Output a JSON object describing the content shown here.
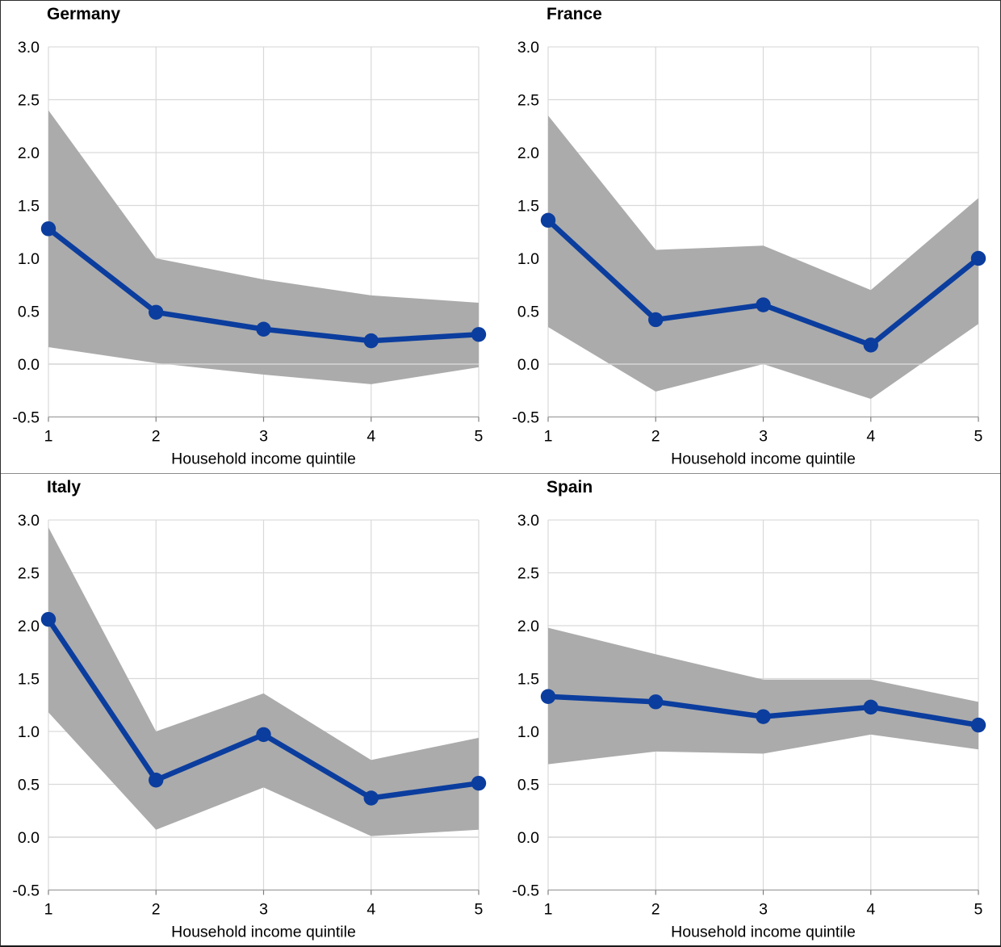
{
  "figure": {
    "panel_count": 4,
    "layout": "2x2"
  },
  "styles": {
    "line_color": "#0b3d9e",
    "marker_color": "#0b3d9e",
    "band_color": "#ababab",
    "gridline_color": "#d9d9d9",
    "zero_line_color": "#d6d6d6",
    "axis_line_color": "#a6a6a6",
    "tick_mark_color": "#808080",
    "text_color": "#000000"
  },
  "chart_data": [
    {
      "type": "line",
      "title": "Germany",
      "xlabel": "Household income quintile",
      "x": [
        1,
        2,
        3,
        4,
        5
      ],
      "series": [
        {
          "name": "point-estimate",
          "values": [
            1.28,
            0.49,
            0.33,
            0.22,
            0.28
          ]
        }
      ],
      "band": {
        "name": "confidence-band",
        "upper": [
          2.4,
          1.0,
          0.8,
          0.65,
          0.58
        ],
        "lower": [
          0.16,
          0.01,
          -0.1,
          -0.19,
          -0.03
        ]
      },
      "ylim": [
        -0.5,
        3.0
      ],
      "yticks": [
        "3.0",
        "2.5",
        "2.0",
        "1.5",
        "1.0",
        "0.5",
        "0.0",
        "-0.5"
      ],
      "xticks": [
        "1",
        "2",
        "3",
        "4",
        "5"
      ],
      "grid": true,
      "legend": "none"
    },
    {
      "type": "line",
      "title": "France",
      "xlabel": "Household income quintile",
      "x": [
        1,
        2,
        3,
        4,
        5
      ],
      "series": [
        {
          "name": "point-estimate",
          "values": [
            1.36,
            0.42,
            0.56,
            0.18,
            1.0
          ]
        }
      ],
      "band": {
        "name": "confidence-band",
        "upper": [
          2.35,
          1.08,
          1.12,
          0.7,
          1.57
        ],
        "lower": [
          0.35,
          -0.26,
          0.0,
          -0.33,
          0.38
        ]
      },
      "ylim": [
        -0.5,
        3.0
      ],
      "yticks": [
        "3.0",
        "2.5",
        "2.0",
        "1.5",
        "1.0",
        "0.5",
        "0.0",
        "-0.5"
      ],
      "xticks": [
        "1",
        "2",
        "3",
        "4",
        "5"
      ],
      "grid": true,
      "legend": "none"
    },
    {
      "type": "line",
      "title": "Italy",
      "xlabel": "Household income quintile",
      "x": [
        1,
        2,
        3,
        4,
        5
      ],
      "series": [
        {
          "name": "point-estimate",
          "values": [
            2.06,
            0.54,
            0.97,
            0.37,
            0.51
          ]
        }
      ],
      "band": {
        "name": "confidence-band",
        "upper": [
          2.93,
          1.0,
          1.36,
          0.73,
          0.94
        ],
        "lower": [
          1.18,
          0.07,
          0.47,
          0.01,
          0.07
        ]
      },
      "ylim": [
        -0.5,
        3.0
      ],
      "yticks": [
        "3.0",
        "2.5",
        "2.0",
        "1.5",
        "1.0",
        "0.5",
        "0.0",
        "-0.5"
      ],
      "xticks": [
        "1",
        "2",
        "3",
        "4",
        "5"
      ],
      "grid": true,
      "legend": "none"
    },
    {
      "type": "line",
      "title": "Spain",
      "xlabel": "Household income quintile",
      "x": [
        1,
        2,
        3,
        4,
        5
      ],
      "series": [
        {
          "name": "point-estimate",
          "values": [
            1.33,
            1.28,
            1.14,
            1.23,
            1.06
          ]
        }
      ],
      "band": {
        "name": "confidence-band",
        "upper": [
          1.98,
          1.73,
          1.49,
          1.49,
          1.28
        ],
        "lower": [
          0.69,
          0.81,
          0.79,
          0.97,
          0.83
        ]
      },
      "ylim": [
        -0.5,
        3.0
      ],
      "yticks": [
        "3.0",
        "2.5",
        "2.0",
        "1.5",
        "1.0",
        "0.5",
        "0.0",
        "-0.5"
      ],
      "xticks": [
        "1",
        "2",
        "3",
        "4",
        "5"
      ],
      "grid": true,
      "legend": "none"
    }
  ]
}
